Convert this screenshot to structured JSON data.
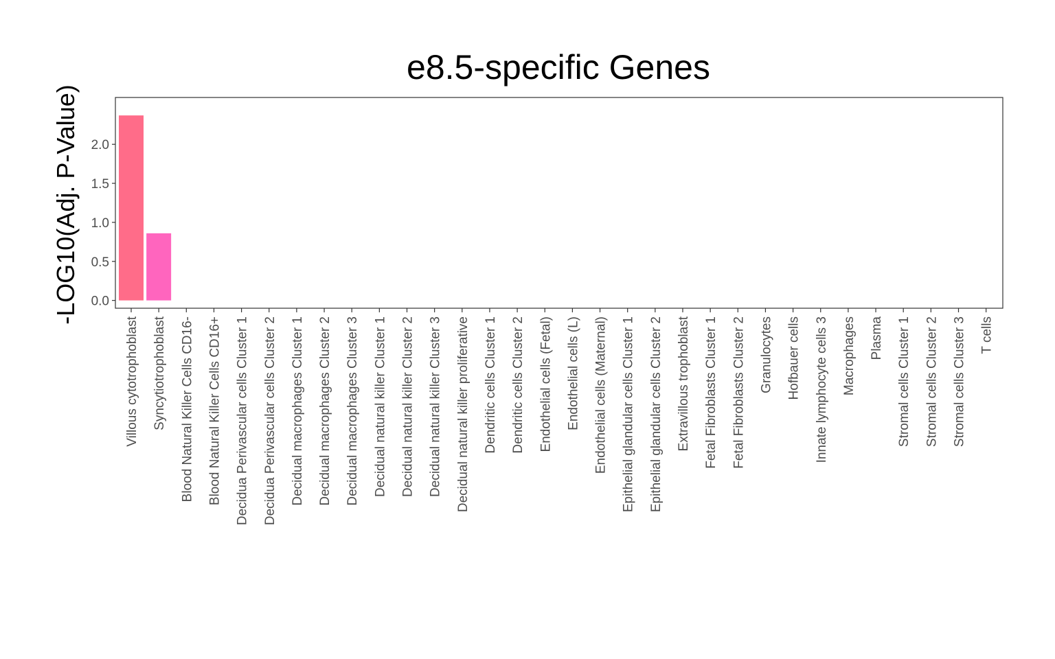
{
  "chart_data": {
    "type": "bar",
    "title": "e8.5-specific Genes",
    "xlabel": "",
    "ylabel": "-LOG10(Adj. P-Value)",
    "ylim": [
      -0.1,
      2.6
    ],
    "yticks": [
      0.0,
      0.5,
      1.0,
      1.5,
      2.0
    ],
    "ytick_labels": [
      "0.0",
      "0.5",
      "1.0",
      "1.5",
      "2.0"
    ],
    "grid": false,
    "legend": "none",
    "categories": [
      "Villous cytotrophoblast",
      "Syncytiotrophoblast",
      "Blood Natural Killer Cells CD16-",
      "Blood Natural Killer Cells CD16+",
      "Decidua Perivascular cells Cluster 1",
      "Decidua Perivascular cells Cluster 2",
      "Decidual macrophages Cluster 1",
      "Decidual macrophages Cluster 2",
      "Decidual macrophages Cluster 3",
      "Decidual natural killer Cluster 1",
      "Decidual natural killer Cluster 2",
      "Decidual natural killer Cluster 3",
      "Decidual natural killer proliferative",
      "Dendritic cells Cluster 1",
      "Dendritic cells Cluster 2",
      "Endothelial cells (Fetal)",
      "Endothelial cells (L)",
      "Endothelial cells (Maternal)",
      "Epithelial glandular cells Cluster 1",
      "Epithelial glandular cells Cluster 2",
      "Extravillous trophoblast",
      "Fetal Fibroblasts Cluster 1",
      "Fetal Fibroblasts Cluster 2",
      "Granulocytes",
      "Hofbauer cells",
      "Innate lymphocyte cells 3",
      "Macrophages",
      "Plasma",
      "Stromal cells Cluster 1",
      "Stromal cells Cluster 2",
      "Stromal cells Cluster 3",
      "T cells"
    ],
    "values": [
      2.37,
      0.86,
      0,
      0,
      0,
      0,
      0,
      0,
      0,
      0,
      0,
      0,
      0,
      0,
      0,
      0,
      0,
      0,
      0,
      0,
      0,
      0,
      0,
      0,
      0,
      0,
      0,
      0,
      0,
      0,
      0,
      0
    ],
    "bar_colors": [
      "#FF6C89",
      "#FF65BE"
    ],
    "colors": {
      "panel_border": "#333333",
      "tick_text": "#4d4d4d",
      "title_text": "#000000"
    }
  }
}
